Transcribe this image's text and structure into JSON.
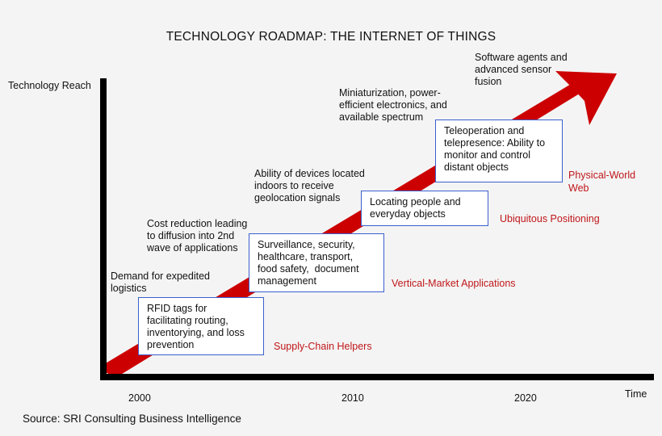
{
  "title": "TECHNOLOGY ROADMAP: THE INTERNET OF THINGS",
  "y_axis_label": "Technology Reach",
  "x_axis_label": "Time",
  "x_ticks": [
    "2000",
    "2010",
    "2020"
  ],
  "source": "Source: SRI Consulting Business Intelligence",
  "colors": {
    "arrow": "#cc0000",
    "box_border": "#3a5fcd",
    "stage_label": "#c0171a"
  },
  "drivers": [
    "Demand for expedited\nlogistics",
    "Cost reduction leading\nto diffusion into 2nd\nwave of applications",
    "Ability of devices located\nindoors to receive\ngeolocation signals",
    "Miniaturization, power-\nefficient electronics, and\navailable spectrum",
    "Software agents and\nadvanced sensor\nfusion"
  ],
  "boxes": [
    "RFID tags for\nfacilitating routing,\ninventorying, and loss\nprevention",
    "Surveillance, security,\nhealthcare, transport,\nfood safety,  document\nmanagement",
    "Locating people and\neveryday objects",
    "Teleoperation and\ntelepresence: Ability to\nmonitor and control\ndistant objects"
  ],
  "stages": [
    "Supply-Chain Helpers",
    "Vertical-Market Applications",
    "Ubiquitous Positioning",
    "Physical-World\nWeb"
  ]
}
